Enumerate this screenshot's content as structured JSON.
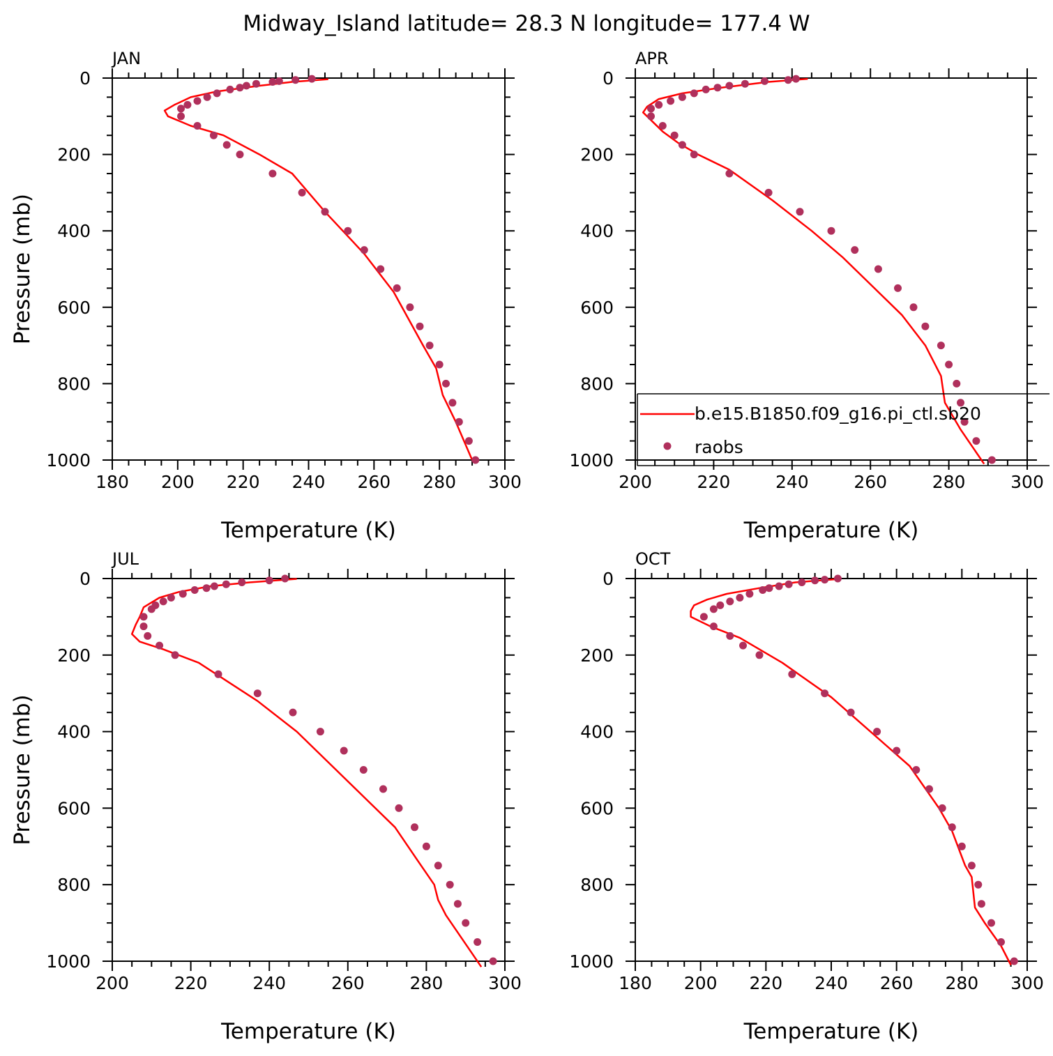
{
  "title": "Midway_Island   latitude= 28.3 N longitude= 177.4 W",
  "colors": {
    "model_line": "#ff0000",
    "raobs_marker": "#b0305c",
    "axes": "#000000"
  },
  "legend": {
    "panel": "APR",
    "entries": [
      {
        "label": "b.e15.B1850.f09_g16.pi_ctl.sb20",
        "symbol": "line"
      },
      {
        "label": "raobs",
        "symbol": "marker"
      }
    ]
  },
  "chart_data": [
    {
      "type": "line",
      "panel_title": "JAN",
      "xlabel": "Temperature (K)",
      "ylabel": "Pressure (mb)",
      "xlim": [
        180,
        300
      ],
      "ylim": [
        1000,
        0
      ],
      "x_ticks": [
        180,
        200,
        220,
        240,
        260,
        280,
        300
      ],
      "y_ticks": [
        0,
        200,
        400,
        600,
        800,
        1000
      ],
      "series": [
        {
          "kind": "line",
          "points": [
            [
              246,
              3
            ],
            [
              235,
              10
            ],
            [
              225,
              20
            ],
            [
              212,
              35
            ],
            [
              204,
              50
            ],
            [
              199,
              70
            ],
            [
              196,
              85
            ],
            [
              197,
              100
            ],
            [
              204,
              125
            ],
            [
              214,
              150
            ],
            [
              225,
              200
            ],
            [
              235,
              250
            ],
            [
              245,
              350
            ],
            [
              257,
              460
            ],
            [
              266,
              560
            ],
            [
              275,
              700
            ],
            [
              279,
              760
            ],
            [
              281,
              830
            ],
            [
              285,
              900
            ],
            [
              290,
              1000
            ]
          ]
        },
        {
          "kind": "scatter",
          "points": [
            [
              241,
              2
            ],
            [
              236,
              5
            ],
            [
              231,
              8
            ],
            [
              229,
              10
            ],
            [
              224,
              15
            ],
            [
              221,
              20
            ],
            [
              219,
              25
            ],
            [
              216,
              30
            ],
            [
              212,
              40
            ],
            [
              209,
              50
            ],
            [
              206,
              60
            ],
            [
              203,
              70
            ],
            [
              201,
              80
            ],
            [
              201,
              100
            ],
            [
              206,
              125
            ],
            [
              211,
              150
            ],
            [
              215,
              175
            ],
            [
              219,
              200
            ],
            [
              229,
              250
            ],
            [
              238,
              300
            ],
            [
              245,
              350
            ],
            [
              252,
              400
            ],
            [
              257,
              450
            ],
            [
              262,
              500
            ],
            [
              267,
              550
            ],
            [
              271,
              600
            ],
            [
              274,
              650
            ],
            [
              277,
              700
            ],
            [
              280,
              750
            ],
            [
              282,
              800
            ],
            [
              284,
              850
            ],
            [
              286,
              900
            ],
            [
              289,
              950
            ],
            [
              291,
              1000
            ]
          ]
        }
      ]
    },
    {
      "type": "line",
      "panel_title": "APR",
      "xlabel": "Temperature (K)",
      "ylabel": "",
      "xlim": [
        200,
        300
      ],
      "ylim": [
        1000,
        0
      ],
      "x_ticks": [
        200,
        220,
        240,
        260,
        280,
        300
      ],
      "y_ticks": [
        0,
        200,
        400,
        600,
        800,
        1000
      ],
      "series": [
        {
          "kind": "line",
          "points": [
            [
              244,
              2
            ],
            [
              234,
              10
            ],
            [
              222,
              25
            ],
            [
              212,
              40
            ],
            [
              206,
              55
            ],
            [
              203,
              75
            ],
            [
              202,
              90
            ],
            [
              204,
              110
            ],
            [
              207,
              140
            ],
            [
              211,
              170
            ],
            [
              216,
              200
            ],
            [
              224,
              240
            ],
            [
              235,
              320
            ],
            [
              245,
              400
            ],
            [
              253,
              470
            ],
            [
              260,
              540
            ],
            [
              268,
              620
            ],
            [
              274,
              700
            ],
            [
              278,
              780
            ],
            [
              279,
              850
            ],
            [
              283,
              920
            ],
            [
              289,
              1010
            ]
          ]
        },
        {
          "kind": "scatter",
          "points": [
            [
              241,
              2
            ],
            [
              239,
              5
            ],
            [
              233,
              8
            ],
            [
              228,
              15
            ],
            [
              224,
              20
            ],
            [
              221,
              25
            ],
            [
              218,
              30
            ],
            [
              215,
              40
            ],
            [
              212,
              50
            ],
            [
              209,
              60
            ],
            [
              206,
              70
            ],
            [
              204,
              80
            ],
            [
              204,
              100
            ],
            [
              207,
              125
            ],
            [
              210,
              150
            ],
            [
              212,
              175
            ],
            [
              215,
              200
            ],
            [
              224,
              250
            ],
            [
              234,
              300
            ],
            [
              242,
              350
            ],
            [
              250,
              400
            ],
            [
              256,
              450
            ],
            [
              262,
              500
            ],
            [
              267,
              550
            ],
            [
              271,
              600
            ],
            [
              274,
              650
            ],
            [
              278,
              700
            ],
            [
              280,
              750
            ],
            [
              282,
              800
            ],
            [
              283,
              850
            ],
            [
              284,
              900
            ],
            [
              287,
              950
            ],
            [
              291,
              1000
            ]
          ]
        }
      ]
    },
    {
      "type": "line",
      "panel_title": "JUL",
      "xlabel": "Temperature (K)",
      "ylabel": "Pressure (mb)",
      "xlim": [
        200,
        300
      ],
      "ylim": [
        1000,
        0
      ],
      "x_ticks": [
        200,
        220,
        240,
        260,
        280,
        300
      ],
      "y_ticks": [
        0,
        200,
        400,
        600,
        800,
        1000
      ],
      "series": [
        {
          "kind": "line",
          "points": [
            [
              247,
              1
            ],
            [
              235,
              10
            ],
            [
              225,
              20
            ],
            [
              217,
              35
            ],
            [
              212,
              50
            ],
            [
              208,
              75
            ],
            [
              207,
              100
            ],
            [
              206,
              120
            ],
            [
              205,
              145
            ],
            [
              207,
              165
            ],
            [
              213,
              185
            ],
            [
              222,
              220
            ],
            [
              237,
              320
            ],
            [
              247,
              400
            ],
            [
              256,
              490
            ],
            [
              264,
              570
            ],
            [
              272,
              650
            ],
            [
              278,
              740
            ],
            [
              282,
              800
            ],
            [
              283,
              840
            ],
            [
              285,
              880
            ],
            [
              294,
              1015
            ]
          ]
        },
        {
          "kind": "scatter",
          "points": [
            [
              244,
              0
            ],
            [
              240,
              5
            ],
            [
              233,
              10
            ],
            [
              229,
              15
            ],
            [
              226,
              20
            ],
            [
              224,
              25
            ],
            [
              221,
              30
            ],
            [
              218,
              40
            ],
            [
              215,
              50
            ],
            [
              213,
              60
            ],
            [
              211,
              70
            ],
            [
              210,
              80
            ],
            [
              208,
              100
            ],
            [
              208,
              125
            ],
            [
              209,
              150
            ],
            [
              212,
              175
            ],
            [
              216,
              200
            ],
            [
              227,
              250
            ],
            [
              237,
              300
            ],
            [
              246,
              350
            ],
            [
              253,
              400
            ],
            [
              259,
              450
            ],
            [
              264,
              500
            ],
            [
              269,
              550
            ],
            [
              273,
              600
            ],
            [
              277,
              650
            ],
            [
              280,
              700
            ],
            [
              283,
              750
            ],
            [
              286,
              800
            ],
            [
              288,
              850
            ],
            [
              290,
              900
            ],
            [
              293,
              950
            ],
            [
              297,
              1000
            ]
          ]
        }
      ]
    },
    {
      "type": "line",
      "panel_title": "OCT",
      "xlabel": "Temperature (K)",
      "ylabel": "",
      "xlim": [
        180,
        300
      ],
      "ylim": [
        1000,
        0
      ],
      "x_ticks": [
        180,
        200,
        220,
        240,
        260,
        280,
        300
      ],
      "y_ticks": [
        0,
        200,
        400,
        600,
        800,
        1000
      ],
      "series": [
        {
          "kind": "line",
          "points": [
            [
              241,
              2
            ],
            [
              229,
              10
            ],
            [
              218,
              25
            ],
            [
              208,
              40
            ],
            [
              202,
              55
            ],
            [
              198,
              70
            ],
            [
              197,
              85
            ],
            [
              197,
              100
            ],
            [
              203,
              125
            ],
            [
              212,
              155
            ],
            [
              225,
              220
            ],
            [
              240,
              310
            ],
            [
              252,
              400
            ],
            [
              264,
              490
            ],
            [
              273,
              600
            ],
            [
              277,
              660
            ],
            [
              281,
              750
            ],
            [
              283,
              780
            ],
            [
              284,
              860
            ],
            [
              287,
              900
            ],
            [
              292,
              960
            ],
            [
              295,
              1010
            ]
          ]
        },
        {
          "kind": "scatter",
          "points": [
            [
              242,
              0
            ],
            [
              238,
              3
            ],
            [
              235,
              5
            ],
            [
              231,
              10
            ],
            [
              227,
              15
            ],
            [
              224,
              20
            ],
            [
              221,
              25
            ],
            [
              219,
              30
            ],
            [
              215,
              40
            ],
            [
              212,
              50
            ],
            [
              209,
              60
            ],
            [
              206,
              70
            ],
            [
              204,
              80
            ],
            [
              201,
              100
            ],
            [
              204,
              125
            ],
            [
              209,
              150
            ],
            [
              213,
              175
            ],
            [
              218,
              200
            ],
            [
              228,
              250
            ],
            [
              238,
              300
            ],
            [
              246,
              350
            ],
            [
              254,
              400
            ],
            [
              260,
              450
            ],
            [
              266,
              500
            ],
            [
              270,
              550
            ],
            [
              274,
              600
            ],
            [
              277,
              650
            ],
            [
              280,
              700
            ],
            [
              283,
              750
            ],
            [
              285,
              800
            ],
            [
              286,
              850
            ],
            [
              289,
              900
            ],
            [
              292,
              950
            ],
            [
              296,
              1000
            ]
          ]
        }
      ]
    }
  ]
}
